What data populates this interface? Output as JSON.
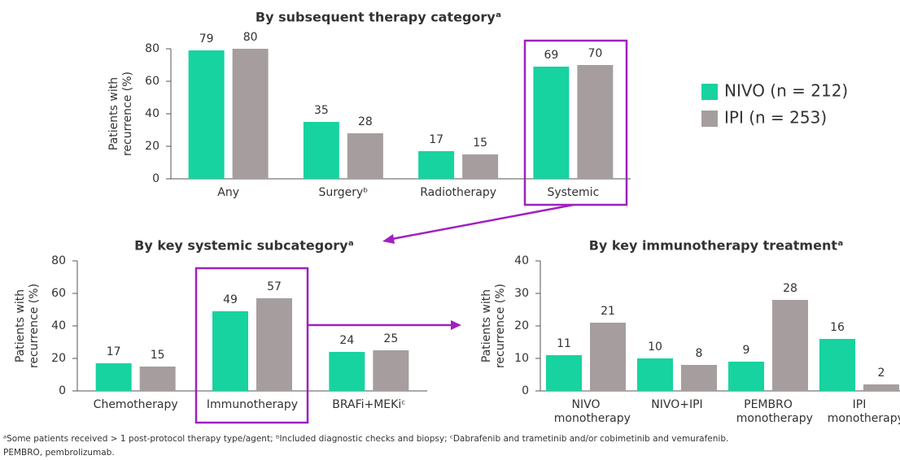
{
  "chart_data": [
    {
      "type": "bar",
      "title": "By subsequent therapy categoryᵃ",
      "ylabel": [
        "Patients with",
        "recurrence (%)"
      ],
      "categories": [
        "Any",
        "Surgeryᵇ",
        "Radiotherapy",
        "Systemic"
      ],
      "series": [
        {
          "name": "NIVO (n = 212)",
          "color": "#17d3a0",
          "values": [
            79,
            35,
            17,
            69
          ]
        },
        {
          "name": "IPI (n = 253)",
          "color": "#a69e9e",
          "values": [
            80,
            28,
            15,
            70
          ]
        }
      ],
      "ylim": [
        0,
        80
      ],
      "yticks": [
        0,
        20,
        40,
        60,
        80
      ],
      "legend": "right"
    },
    {
      "type": "bar",
      "title": "By key systemic subcategoryᵃ",
      "ylabel": [
        "Patients with",
        "recurrence (%)"
      ],
      "categories": [
        "Chemotherapy",
        "Immunotherapy",
        "BRAFi+MEKiᶜ"
      ],
      "series": [
        {
          "name": "NIVO (n = 212)",
          "color": "#17d3a0",
          "values": [
            17,
            49,
            24
          ]
        },
        {
          "name": "IPI (n = 253)",
          "color": "#a69e9e",
          "values": [
            15,
            57,
            25
          ]
        }
      ],
      "ylim": [
        0,
        80
      ],
      "yticks": [
        0,
        20,
        40,
        60,
        80
      ]
    },
    {
      "type": "bar",
      "title": "By key immunotherapy treatmentᵃ",
      "ylabel": [
        "Patients with",
        "recurrence (%)"
      ],
      "categories": [
        "NIVO monotherapy",
        "NIVO+IPI",
        "PEMBRO monotherapy",
        "IPI monotherapy"
      ],
      "series": [
        {
          "name": "NIVO (n = 212)",
          "color": "#17d3a0",
          "values": [
            11,
            10,
            9,
            16
          ]
        },
        {
          "name": "IPI (n = 253)",
          "color": "#a69e9e",
          "values": [
            21,
            8,
            28,
            2
          ]
        }
      ],
      "ylim": [
        0,
        40
      ],
      "yticks": [
        0,
        10,
        20,
        30,
        40
      ]
    }
  ],
  "footnotes": [
    "ᵃSome patients received > 1 post-protocol therapy type/agent; ᵇIncluded diagnostic checks and biopsy; ᶜDabrafenib and trametinib and/or cobimetinib and vemurafenib.",
    "PEMBRO, pembrolizumab."
  ]
}
